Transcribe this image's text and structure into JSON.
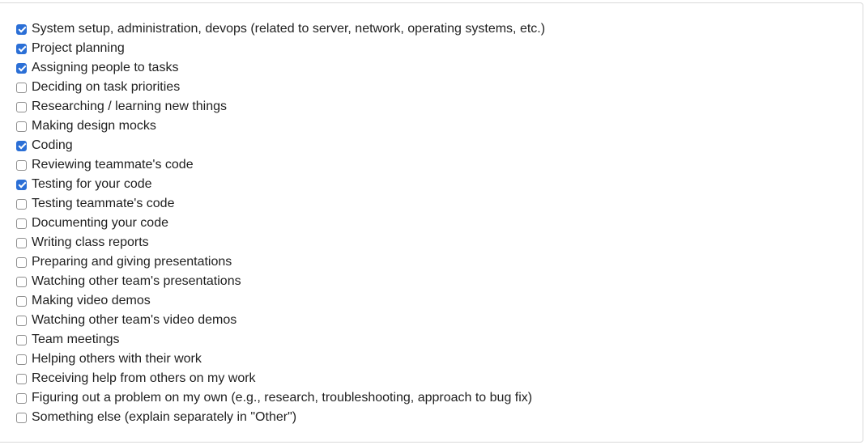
{
  "options": [
    {
      "label": "System setup, administration, devops (related to server, network, operating systems, etc.)",
      "checked": true
    },
    {
      "label": "Project planning",
      "checked": true
    },
    {
      "label": "Assigning people to tasks",
      "checked": true
    },
    {
      "label": "Deciding on task priorities",
      "checked": false
    },
    {
      "label": "Researching / learning new things",
      "checked": false
    },
    {
      "label": "Making design mocks",
      "checked": false
    },
    {
      "label": "Coding",
      "checked": true
    },
    {
      "label": "Reviewing teammate's code",
      "checked": false
    },
    {
      "label": "Testing for your code",
      "checked": true
    },
    {
      "label": "Testing teammate's code",
      "checked": false
    },
    {
      "label": "Documenting your code",
      "checked": false
    },
    {
      "label": "Writing class reports",
      "checked": false
    },
    {
      "label": "Preparing and giving presentations",
      "checked": false
    },
    {
      "label": "Watching other team's presentations",
      "checked": false
    },
    {
      "label": "Making video demos",
      "checked": false
    },
    {
      "label": "Watching other team's video demos",
      "checked": false
    },
    {
      "label": "Team meetings",
      "checked": false
    },
    {
      "label": "Helping others with their work",
      "checked": false
    },
    {
      "label": "Receiving help from others on my work",
      "checked": false
    },
    {
      "label": "Figuring out a problem on my own (e.g., research, troubleshooting, approach to bug fix)",
      "checked": false
    },
    {
      "label": "Something else (explain separately in \"Other\")",
      "checked": false
    }
  ],
  "colors": {
    "accent": "#2b6fd6",
    "text": "#1f1f1f",
    "border": "#d9d9d9"
  }
}
